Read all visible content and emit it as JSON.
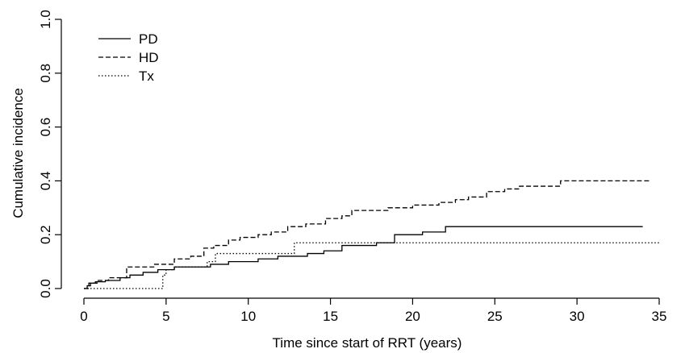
{
  "chart_data": {
    "type": "line",
    "xlabel": "Time since start of RRT (years)",
    "ylabel": "Cumulative incidence",
    "xlim": [
      0,
      35
    ],
    "ylim": [
      0,
      1.0
    ],
    "x_ticks": [
      0,
      5,
      10,
      15,
      20,
      25,
      30,
      35
    ],
    "x_tick_labels": [
      "0",
      "5",
      "10",
      "15",
      "20",
      "25",
      "30",
      "35"
    ],
    "y_ticks": [
      0.0,
      0.2,
      0.4,
      0.6,
      0.8,
      1.0
    ],
    "y_tick_labels": [
      "0.0",
      "0.2",
      "0.4",
      "0.6",
      "0.8",
      "1.0"
    ],
    "grid": false,
    "legend_position": "top-left",
    "step": true,
    "series": [
      {
        "name": "PD",
        "line_style": "solid",
        "color": "#000000",
        "x": [
          0,
          0.2,
          0.4,
          0.7,
          1.3,
          2.2,
          2.8,
          3.6,
          4.5,
          5.5,
          7.7,
          8.8,
          10.6,
          11.8,
          13.6,
          14.6,
          15.7,
          17.8,
          18.9,
          20.6,
          22.0,
          34.0
        ],
        "y": [
          0,
          0.01,
          0.02,
          0.025,
          0.03,
          0.04,
          0.05,
          0.06,
          0.07,
          0.08,
          0.09,
          0.1,
          0.11,
          0.12,
          0.13,
          0.14,
          0.16,
          0.17,
          0.2,
          0.21,
          0.23,
          0.23
        ]
      },
      {
        "name": "HD",
        "line_style": "dashed",
        "color": "#000000",
        "x": [
          0,
          0.3,
          0.8,
          1.5,
          2.6,
          4.3,
          5.5,
          6.5,
          7.3,
          7.9,
          8.8,
          9.5,
          10.6,
          11.4,
          12.4,
          13.5,
          14.7,
          15.7,
          16.3,
          18.5,
          20.0,
          21.6,
          22.6,
          23.4,
          24.5,
          25.6,
          26.5,
          29.0,
          34.5
        ],
        "y": [
          0,
          0.02,
          0.03,
          0.04,
          0.08,
          0.09,
          0.11,
          0.12,
          0.15,
          0.16,
          0.18,
          0.19,
          0.2,
          0.21,
          0.23,
          0.24,
          0.26,
          0.27,
          0.29,
          0.3,
          0.31,
          0.32,
          0.33,
          0.34,
          0.36,
          0.37,
          0.38,
          0.4,
          0.4
        ]
      },
      {
        "name": "Tx",
        "line_style": "dotted",
        "color": "#000000",
        "x": [
          0,
          0.3,
          4.8,
          5.0,
          5.5,
          7.5,
          8.0,
          12.8,
          13.2,
          35.0
        ],
        "y": [
          0,
          0.0,
          0.05,
          0.07,
          0.08,
          0.1,
          0.13,
          0.17,
          0.17,
          0.17
        ]
      }
    ]
  }
}
